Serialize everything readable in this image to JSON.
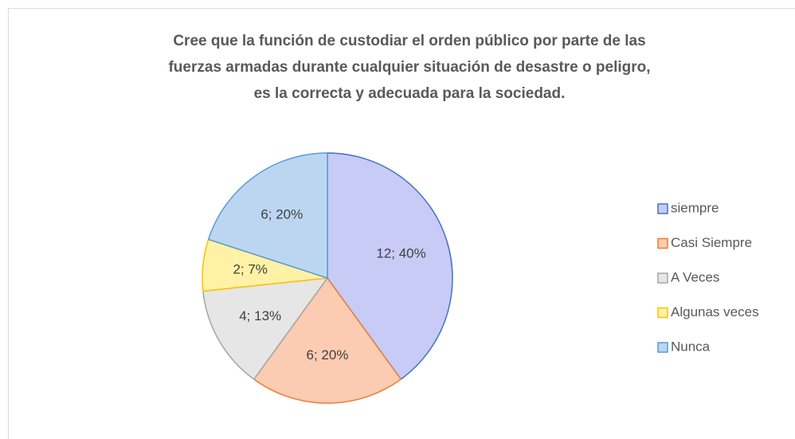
{
  "chart_data": {
    "type": "pie",
    "title": [
      "Cree que la función de custodiar  el orden público  por parte de las",
      "fuerzas  armadas  durante  cualquier  situación  de  desastre  o peligro,",
      "es la correcta  y adecuada  para  la  sociedad."
    ],
    "categories": [
      "siempre",
      "Casi Siempre",
      "A Veces",
      "Algunas veces",
      "Nunca"
    ],
    "values": [
      12,
      6,
      4,
      2,
      6
    ],
    "value_labels": [
      "12; 40%",
      "6; 20%",
      "4; 13%",
      "2; 7%",
      "6; 20%"
    ],
    "colors": [
      "#c8cbf6",
      "#fbcbb2",
      "#e6e6e6",
      "#fff2a6",
      "#bcd6f2"
    ],
    "edge_colors": [
      "#4472c4",
      "#ed7d31",
      "#a5a5a5",
      "#ffc000",
      "#5b9bd5"
    ],
    "legend": "right"
  }
}
